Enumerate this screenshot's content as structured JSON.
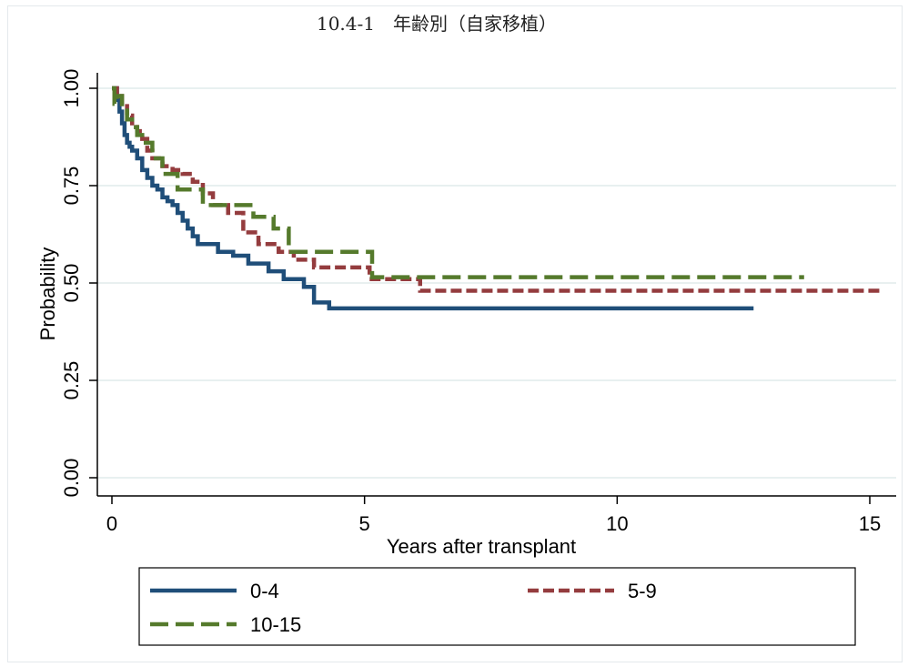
{
  "chart_data": {
    "type": "line",
    "title": "10.4-1　年齢別（自家移植）",
    "xlabel": "Years after transplant",
    "ylabel": "Probability",
    "xlim": [
      0,
      15.5
    ],
    "ylim": [
      0,
      1
    ],
    "xticks": [
      0,
      5,
      10,
      15
    ],
    "xtick_labels": [
      "0",
      "5",
      "10",
      "15"
    ],
    "yticks": [
      0,
      0.25,
      0.5,
      0.75,
      1.0
    ],
    "ytick_labels": [
      "0.00",
      "0.25",
      "0.50",
      "0.75",
      "1.00"
    ],
    "grid": "horizontal",
    "legend_position": "bottom",
    "series": [
      {
        "name": "0-4",
        "color": "#1f4e79",
        "dash": "solid",
        "x": [
          0,
          0.1,
          0.15,
          0.2,
          0.25,
          0.3,
          0.35,
          0.4,
          0.5,
          0.6,
          0.7,
          0.8,
          0.9,
          1.0,
          1.1,
          1.2,
          1.3,
          1.4,
          1.5,
          1.6,
          1.7,
          1.9,
          2.1,
          2.4,
          2.7,
          3.1,
          3.4,
          3.8,
          4.0,
          4.3,
          12.7
        ],
        "y": [
          1.0,
          0.97,
          0.94,
          0.91,
          0.88,
          0.86,
          0.85,
          0.84,
          0.82,
          0.79,
          0.77,
          0.75,
          0.74,
          0.72,
          0.71,
          0.7,
          0.68,
          0.66,
          0.64,
          0.62,
          0.6,
          0.6,
          0.58,
          0.57,
          0.55,
          0.53,
          0.51,
          0.49,
          0.45,
          0.435,
          0.435
        ]
      },
      {
        "name": "5-9",
        "color": "#943c3e",
        "dash": "12,5",
        "x": [
          0,
          0.1,
          0.2,
          0.3,
          0.4,
          0.5,
          0.6,
          0.7,
          0.8,
          1.0,
          1.2,
          1.4,
          1.6,
          1.8,
          2.0,
          2.3,
          2.6,
          2.9,
          3.3,
          3.6,
          4.0,
          5.1,
          6.1,
          15.2
        ],
        "y": [
          1.0,
          0.98,
          0.96,
          0.93,
          0.91,
          0.89,
          0.87,
          0.84,
          0.82,
          0.8,
          0.79,
          0.78,
          0.76,
          0.73,
          0.7,
          0.68,
          0.63,
          0.6,
          0.58,
          0.56,
          0.54,
          0.51,
          0.48,
          0.48
        ]
      },
      {
        "name": "10-15",
        "color": "#557a2c",
        "dash": "20,8",
        "x": [
          0,
          0.05,
          0.1,
          0.2,
          0.3,
          0.4,
          0.5,
          0.6,
          0.8,
          1.0,
          1.3,
          1.8,
          2.8,
          3.2,
          3.5,
          5.15,
          13.7
        ],
        "y": [
          1.0,
          0.96,
          0.98,
          0.95,
          0.92,
          0.9,
          0.88,
          0.86,
          0.82,
          0.78,
          0.74,
          0.7,
          0.67,
          0.64,
          0.58,
          0.515,
          0.515
        ]
      }
    ]
  }
}
